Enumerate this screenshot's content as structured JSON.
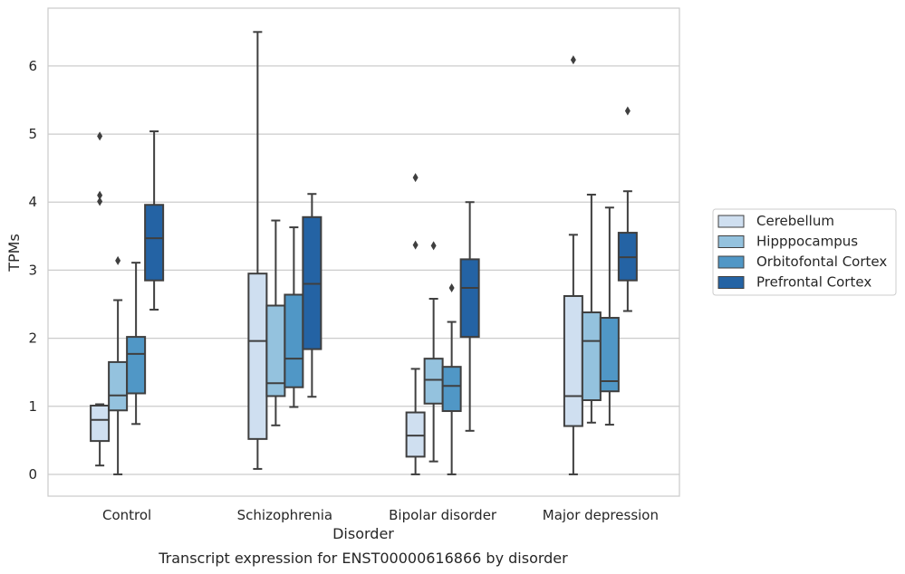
{
  "chart_data": {
    "type": "box",
    "caption": "Transcript expression for ENST00000616866 by disorder",
    "xlabel": "Disorder",
    "ylabel": "TPMs",
    "ylim": [
      -0.32,
      6.85
    ],
    "yticks": [
      0,
      1,
      2,
      3,
      4,
      5,
      6
    ],
    "grid": "horizontal",
    "legend_position": "right",
    "categories": [
      "Control",
      "Schizophrenia",
      "Bipolar disorder",
      "Major depression"
    ],
    "series": [
      {
        "name": "Cerebellum",
        "color": "#cfdff0",
        "boxes": [
          {
            "whislo": 0.13,
            "q1": 0.49,
            "med": 0.8,
            "q3": 1.01,
            "whishi": 1.03,
            "fliers": [
              4.97,
              4.1,
              4.01
            ]
          },
          {
            "whislo": 0.08,
            "q1": 0.52,
            "med": 1.96,
            "q3": 2.95,
            "whishi": 6.5,
            "fliers": []
          },
          {
            "whislo": 0.0,
            "q1": 0.26,
            "med": 0.57,
            "q3": 0.91,
            "whishi": 1.55,
            "fliers": [
              4.36,
              3.37
            ]
          },
          {
            "whislo": 0.0,
            "q1": 0.71,
            "med": 1.15,
            "q3": 2.62,
            "whishi": 3.52,
            "fliers": [
              6.09
            ]
          }
        ]
      },
      {
        "name": "Hipppocampus",
        "color": "#94c2de",
        "boxes": [
          {
            "whislo": 0.0,
            "q1": 0.94,
            "med": 1.16,
            "q3": 1.65,
            "whishi": 2.56,
            "fliers": [
              3.14
            ]
          },
          {
            "whislo": 0.72,
            "q1": 1.15,
            "med": 1.34,
            "q3": 2.48,
            "whishi": 3.73,
            "fliers": []
          },
          {
            "whislo": 0.19,
            "q1": 1.04,
            "med": 1.39,
            "q3": 1.7,
            "whishi": 2.58,
            "fliers": [
              3.36
            ]
          },
          {
            "whislo": 0.76,
            "q1": 1.09,
            "med": 1.96,
            "q3": 2.38,
            "whishi": 4.11,
            "fliers": []
          }
        ]
      },
      {
        "name": "Orbitofontal Cortex",
        "color": "#5097c6",
        "boxes": [
          {
            "whislo": 0.74,
            "q1": 1.19,
            "med": 1.77,
            "q3": 2.02,
            "whishi": 3.11,
            "fliers": []
          },
          {
            "whislo": 0.99,
            "q1": 1.28,
            "med": 1.7,
            "q3": 2.64,
            "whishi": 3.63,
            "fliers": []
          },
          {
            "whislo": 0.0,
            "q1": 0.93,
            "med": 1.3,
            "q3": 1.58,
            "whishi": 2.24,
            "fliers": [
              2.74
            ]
          },
          {
            "whislo": 0.73,
            "q1": 1.22,
            "med": 1.37,
            "q3": 2.3,
            "whishi": 3.92,
            "fliers": []
          }
        ]
      },
      {
        "name": "Prefrontal Cortex",
        "color": "#2463a4",
        "boxes": [
          {
            "whislo": 2.42,
            "q1": 2.85,
            "med": 3.47,
            "q3": 3.96,
            "whishi": 5.04,
            "fliers": []
          },
          {
            "whislo": 1.14,
            "q1": 1.84,
            "med": 2.8,
            "q3": 3.78,
            "whishi": 4.12,
            "fliers": []
          },
          {
            "whislo": 0.64,
            "q1": 2.02,
            "med": 2.74,
            "q3": 3.16,
            "whishi": 4.0,
            "fliers": []
          },
          {
            "whislo": 2.4,
            "q1": 2.85,
            "med": 3.19,
            "q3": 3.55,
            "whishi": 4.16,
            "fliers": [
              5.34
            ]
          }
        ]
      }
    ]
  }
}
